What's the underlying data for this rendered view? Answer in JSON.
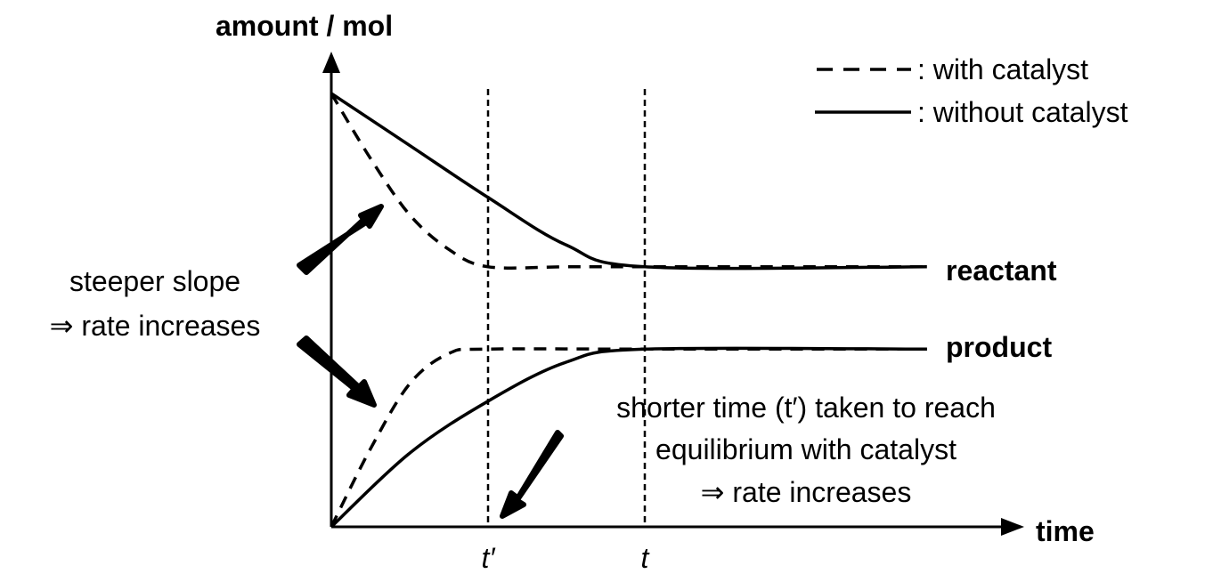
{
  "chart_data": {
    "type": "line",
    "ylabel": "amount / mol",
    "xlabel": "time",
    "x_ticks": [
      {
        "label": "t′",
        "value": 1
      },
      {
        "label": "t",
        "value": 2
      }
    ],
    "xlim": [
      0,
      3.8
    ],
    "ylim": [
      0,
      1
    ],
    "grid": false,
    "legend": {
      "placement": "top-right",
      "entries": [
        {
          "style": "dashed",
          "label": ": with catalyst"
        },
        {
          "style": "solid",
          "label": ": without catalyst"
        }
      ]
    },
    "series": [
      {
        "name": "reactant",
        "style": "dashed",
        "points": [
          [
            0,
            1.0
          ],
          [
            0.25,
            0.85
          ],
          [
            0.5,
            0.72
          ],
          [
            0.75,
            0.64
          ],
          [
            1,
            0.6
          ],
          [
            1.5,
            0.6
          ],
          [
            2,
            0.6
          ],
          [
            3.8,
            0.6
          ]
        ]
      },
      {
        "name": "reactant",
        "style": "solid",
        "points": [
          [
            0,
            1.0
          ],
          [
            0.5,
            0.88
          ],
          [
            1,
            0.76
          ],
          [
            1.5,
            0.65
          ],
          [
            2,
            0.6
          ],
          [
            3.8,
            0.6
          ]
        ]
      },
      {
        "name": "product",
        "style": "dashed",
        "points": [
          [
            0,
            0.0
          ],
          [
            0.25,
            0.18
          ],
          [
            0.5,
            0.33
          ],
          [
            0.75,
            0.4
          ],
          [
            1,
            0.41
          ],
          [
            2,
            0.41
          ],
          [
            3.8,
            0.41
          ]
        ]
      },
      {
        "name": "product",
        "style": "solid",
        "points": [
          [
            0,
            0.0
          ],
          [
            0.5,
            0.17
          ],
          [
            1,
            0.29
          ],
          [
            1.5,
            0.38
          ],
          [
            2,
            0.41
          ],
          [
            3.8,
            0.41
          ]
        ]
      }
    ],
    "series_labels": {
      "reactant": "reactant",
      "product": "product"
    },
    "annotations": {
      "slope_line1": "steeper slope",
      "slope_line2": "⇒ rate increases",
      "time_line1": "shorter time (t′) taken to reach",
      "time_line2": "equilibrium with catalyst",
      "time_line3": "⇒ rate increases"
    }
  }
}
